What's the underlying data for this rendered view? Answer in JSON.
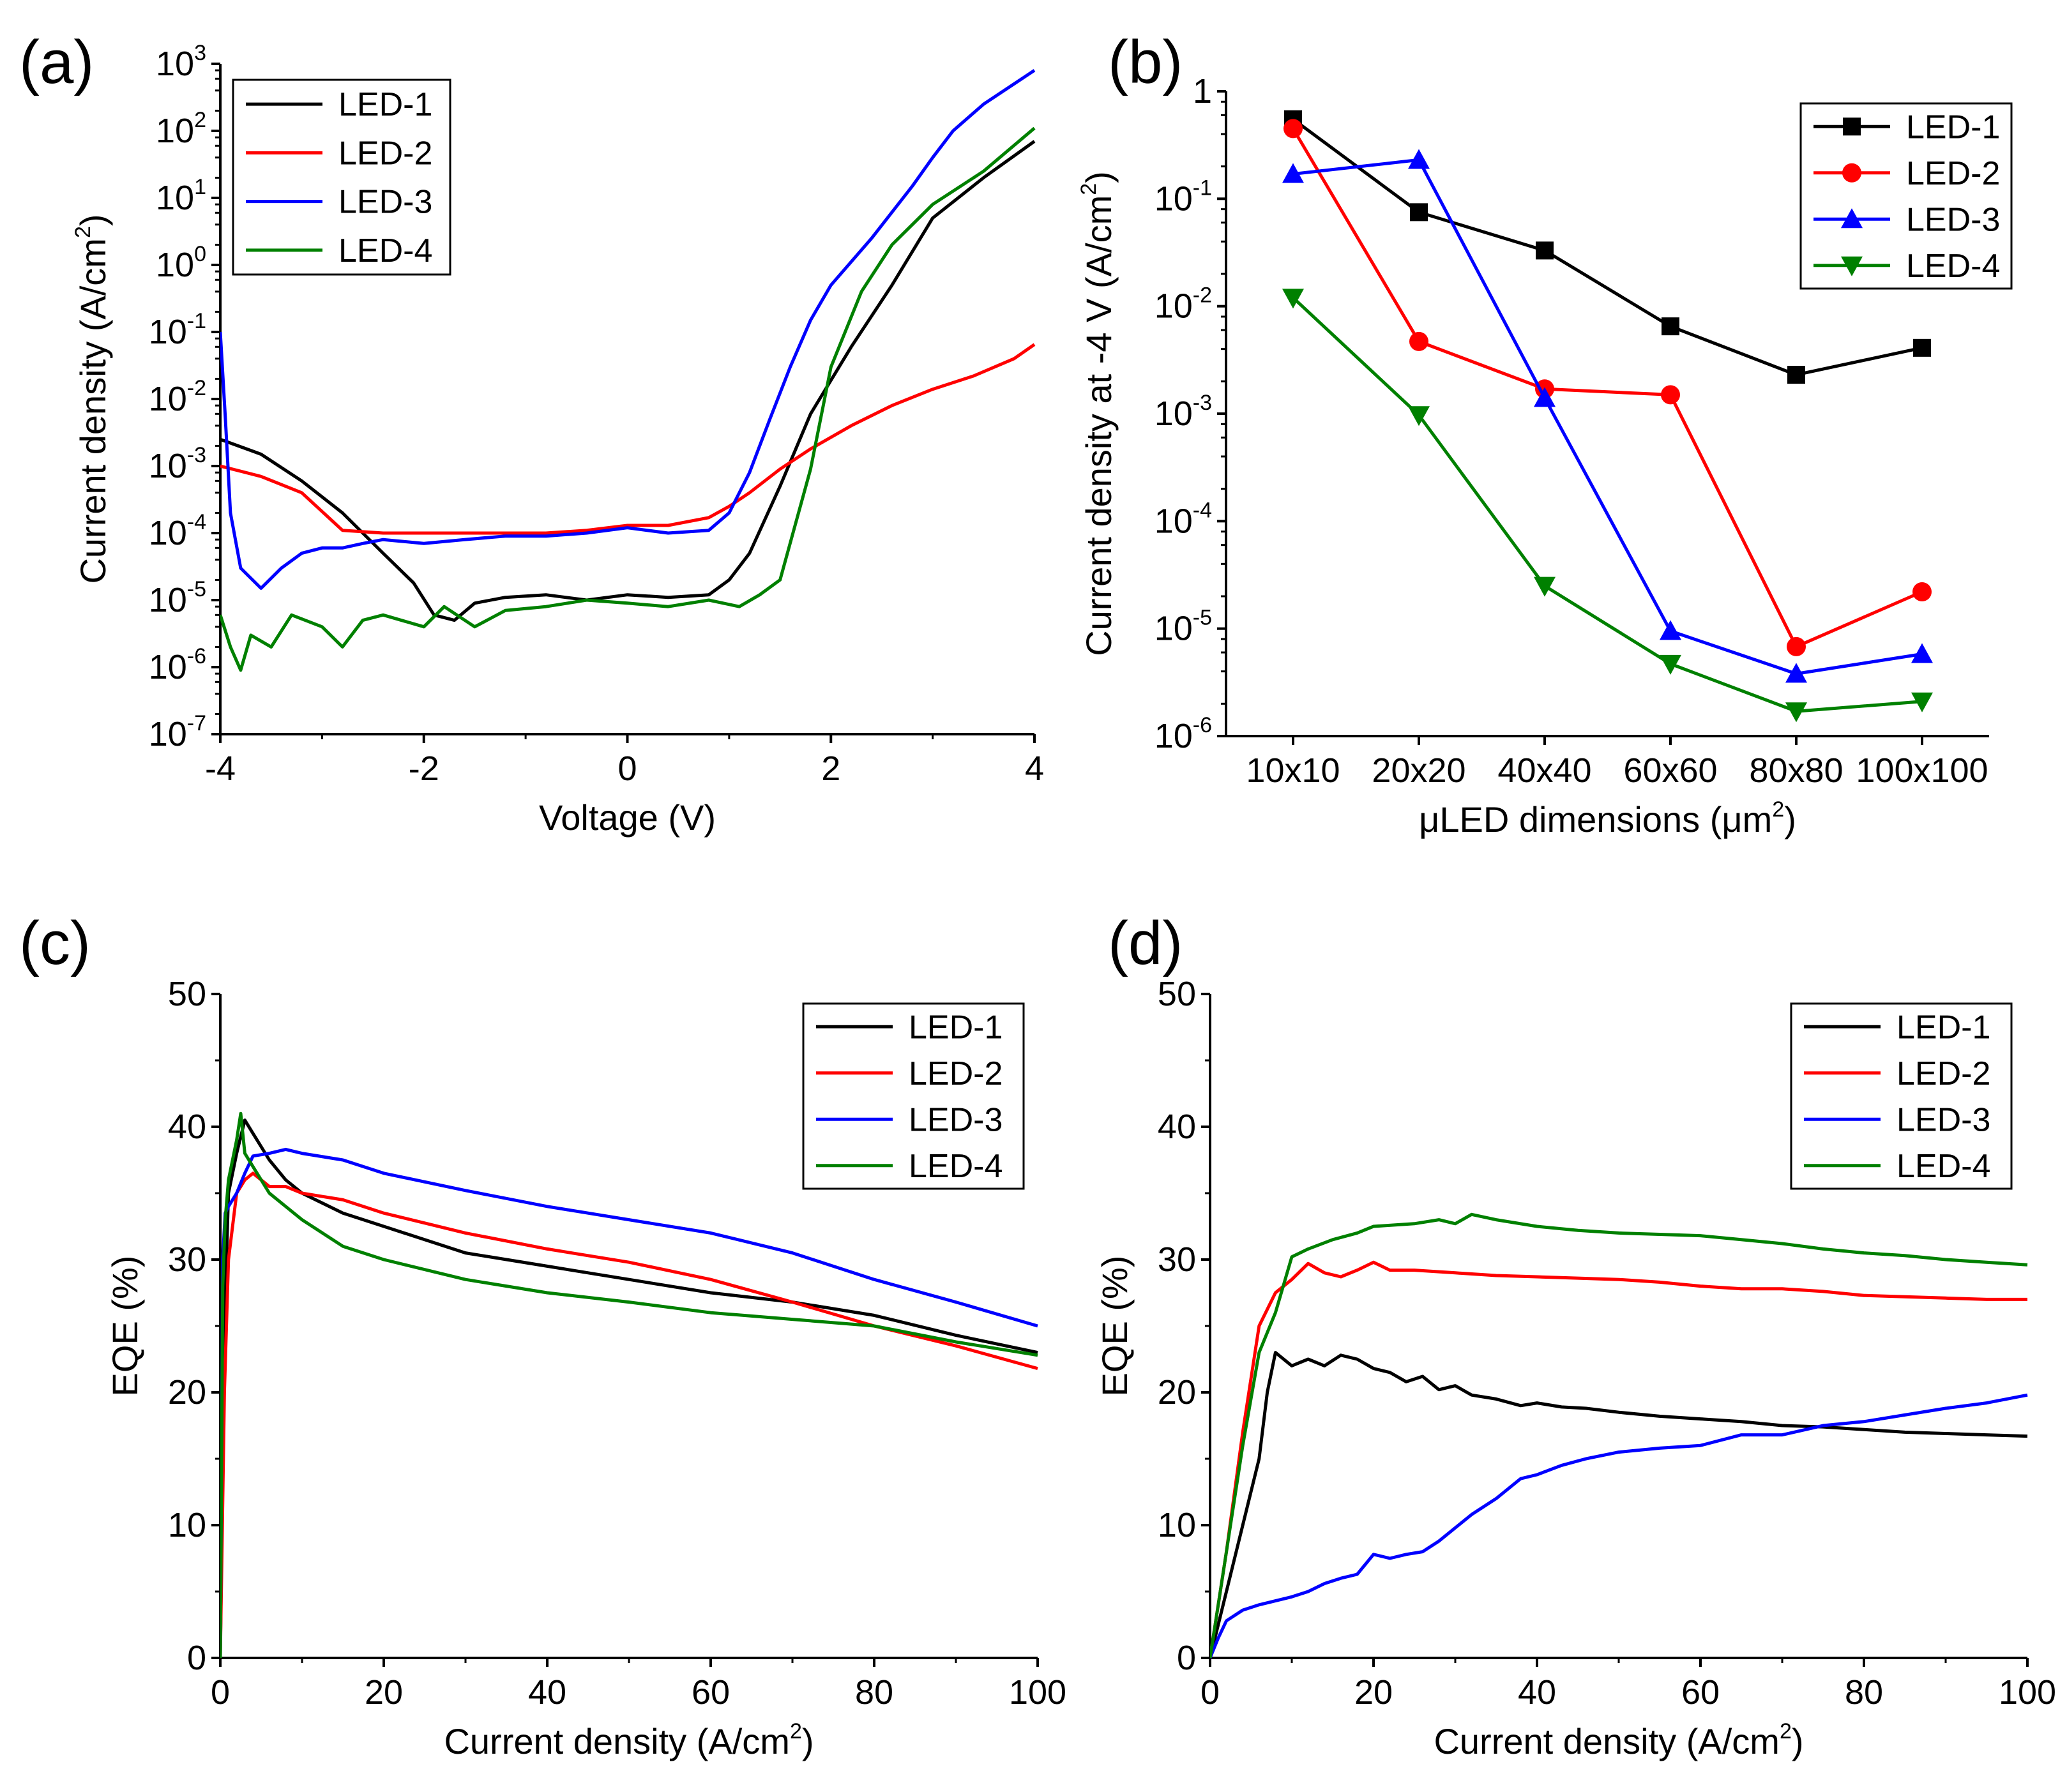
{
  "chart_data": [
    {
      "panel": "(a)",
      "type": "line",
      "xlabel": "Voltage (V)",
      "ylabel": "Current density (A/cm",
      "ylabel_sup": "2",
      "ylabel_end": ")",
      "yscale": "log",
      "xlim": [
        -4,
        4
      ],
      "ylim_exp": [
        -7,
        3
      ],
      "xticks": [
        -4,
        -2,
        0,
        2,
        4
      ],
      "yticks": [
        {
          "exp": -7,
          "text": "10",
          "sup": "-7"
        },
        {
          "exp": -6,
          "text": "10",
          "sup": "-6"
        },
        {
          "exp": -5,
          "text": "10",
          "sup": "-5"
        },
        {
          "exp": -4,
          "text": "10",
          "sup": "-4"
        },
        {
          "exp": -3,
          "text": "10",
          "sup": "-3"
        },
        {
          "exp": -2,
          "text": "10",
          "sup": "-2"
        },
        {
          "exp": -1,
          "text": "10",
          "sup": "-1"
        },
        {
          "exp": 0,
          "text": "10",
          "sup": "0"
        },
        {
          "exp": 1,
          "text": "10",
          "sup": "1"
        },
        {
          "exp": 2,
          "text": "10",
          "sup": "2"
        },
        {
          "exp": 3,
          "text": "10",
          "sup": "3"
        }
      ],
      "legend": "top-left",
      "series": [
        {
          "name": "LED-1",
          "color": "#000000",
          "x": [
            -4,
            -3.6,
            -3.2,
            -2.8,
            -2.4,
            -2.1,
            -1.9,
            -1.7,
            -1.5,
            -1.2,
            -0.8,
            -0.4,
            0,
            0.4,
            0.8,
            1.0,
            1.2,
            1.5,
            1.8,
            2.2,
            2.6,
            3.0,
            3.5,
            4.0
          ],
          "y": [
            0.0025,
            0.0015,
            0.0006,
            0.0002,
            5e-05,
            1.8e-05,
            6e-06,
            5e-06,
            9e-06,
            1.1e-05,
            1.2e-05,
            1e-05,
            1.2e-05,
            1.1e-05,
            1.2e-05,
            2e-05,
            5e-05,
            0.0005,
            0.006,
            0.06,
            0.5,
            5,
            20,
            70
          ]
        },
        {
          "name": "LED-2",
          "color": "#ff0000",
          "x": [
            -4,
            -3.6,
            -3.2,
            -2.8,
            -2.4,
            -2.0,
            -1.6,
            -1.2,
            -0.8,
            -0.4,
            0,
            0.4,
            0.8,
            1.0,
            1.2,
            1.5,
            1.8,
            2.2,
            2.6,
            3.0,
            3.4,
            3.8,
            4.0
          ],
          "y": [
            0.001,
            0.0007,
            0.0004,
            0.00011,
            0.0001,
            0.0001,
            0.0001,
            0.0001,
            0.0001,
            0.00011,
            0.00013,
            0.00013,
            0.00017,
            0.00025,
            0.0004,
            0.0009,
            0.0018,
            0.004,
            0.008,
            0.014,
            0.022,
            0.04,
            0.065
          ]
        },
        {
          "name": "LED-3",
          "color": "#0000ff",
          "x": [
            -4,
            -3.95,
            -3.9,
            -3.8,
            -3.6,
            -3.4,
            -3.2,
            -3.0,
            -2.8,
            -2.6,
            -2.4,
            -2.0,
            -1.6,
            -1.2,
            -0.8,
            -0.4,
            0,
            0.4,
            0.8,
            1.0,
            1.2,
            1.4,
            1.6,
            1.8,
            2.0,
            2.4,
            2.8,
            3.0,
            3.2,
            3.5,
            4.0
          ],
          "y": [
            0.1,
            0.005,
            0.0002,
            3e-05,
            1.5e-05,
            3e-05,
            5e-05,
            6e-05,
            6e-05,
            7e-05,
            8e-05,
            7e-05,
            8e-05,
            9e-05,
            9e-05,
            0.0001,
            0.00012,
            0.0001,
            0.00011,
            0.0002,
            0.0008,
            0.005,
            0.03,
            0.15,
            0.5,
            2.5,
            15,
            40,
            100,
            250,
            800
          ]
        },
        {
          "name": "LED-4",
          "color": "#008000",
          "x": [
            -4,
            -3.9,
            -3.8,
            -3.7,
            -3.5,
            -3.3,
            -3.0,
            -2.8,
            -2.6,
            -2.4,
            -2.0,
            -1.8,
            -1.5,
            -1.2,
            -0.8,
            -0.4,
            0,
            0.4,
            0.8,
            1.1,
            1.3,
            1.5,
            1.8,
            2.0,
            2.3,
            2.6,
            3.0,
            3.5,
            4.0
          ],
          "y": [
            6e-06,
            2e-06,
            9e-07,
            3e-06,
            2e-06,
            6e-06,
            4e-06,
            2e-06,
            5e-06,
            6e-06,
            4e-06,
            8e-06,
            4e-06,
            7e-06,
            8e-06,
            1e-05,
            9e-06,
            8e-06,
            1e-05,
            8e-06,
            1.2e-05,
            2e-05,
            0.0009,
            0.03,
            0.4,
            2,
            8,
            25,
            110
          ]
        }
      ]
    },
    {
      "panel": "(b)",
      "type": "line",
      "xlabel": "μLED dimensions (μm",
      "xlabel_sup": "2",
      "xlabel_end": ")",
      "ylabel": "Current density at -4 V (A/cm",
      "ylabel_sup": "2",
      "ylabel_end": ")",
      "yscale": "log",
      "categories": [
        "10x10",
        "20x20",
        "40x40",
        "60x60",
        "80x80",
        "100x100"
      ],
      "ylim_exp": [
        -6,
        0
      ],
      "yticks": [
        {
          "exp": 0,
          "text": "1",
          "sup": ""
        },
        {
          "exp": -1,
          "text": "10",
          "sup": "-1"
        },
        {
          "exp": -2,
          "text": "10",
          "sup": "-2"
        },
        {
          "exp": -3,
          "text": "10",
          "sup": "-3"
        },
        {
          "exp": -4,
          "text": "10",
          "sup": "-4"
        },
        {
          "exp": -5,
          "text": "10",
          "sup": "-5"
        },
        {
          "exp": -6,
          "text": "10",
          "sup": "-6"
        }
      ],
      "legend": "top-right",
      "series": [
        {
          "name": "LED-1",
          "color": "#000000",
          "marker": "square",
          "values": [
            0.55,
            0.075,
            0.033,
            0.0065,
            0.0023,
            0.0041
          ]
        },
        {
          "name": "LED-2",
          "color": "#ff0000",
          "marker": "circle",
          "values": [
            0.45,
            0.0047,
            0.0017,
            0.0015,
            6.8e-06,
            2.2e-05
          ]
        },
        {
          "name": "LED-3",
          "color": "#0000ff",
          "marker": "triangle-up",
          "values": [
            0.17,
            0.23,
            0.0014,
            9.5e-06,
            3.8e-06,
            5.8e-06
          ]
        },
        {
          "name": "LED-4",
          "color": "#008000",
          "marker": "triangle-down",
          "values": [
            0.012,
            0.00097,
            2.5e-05,
            4.7e-06,
            1.7e-06,
            2.1e-06
          ]
        }
      ]
    },
    {
      "panel": "(c)",
      "type": "line",
      "xlabel": "Current density (A/cm",
      "xlabel_sup": "2",
      "xlabel_end": ")",
      "ylabel": "EQE (%)",
      "xlim": [
        0,
        100
      ],
      "ylim": [
        0,
        50
      ],
      "xticks": [
        0,
        20,
        40,
        60,
        80,
        100
      ],
      "yticks": [
        0,
        10,
        20,
        30,
        40,
        50
      ],
      "legend": "top-right",
      "series": [
        {
          "name": "LED-1",
          "color": "#000000",
          "x": [
            0,
            0.5,
            1,
            2,
            3,
            4,
            6,
            8,
            10,
            15,
            20,
            30,
            40,
            50,
            60,
            70,
            80,
            90,
            100
          ],
          "y": [
            0,
            25,
            35,
            38,
            40.5,
            39.5,
            37.5,
            36,
            35,
            33.5,
            32.5,
            30.5,
            29.5,
            28.5,
            27.5,
            26.8,
            25.8,
            24.3,
            23
          ]
        },
        {
          "name": "LED-2",
          "color": "#ff0000",
          "x": [
            0,
            0.5,
            1,
            2,
            3,
            4,
            5,
            6,
            8,
            10,
            15,
            20,
            30,
            40,
            50,
            60,
            70,
            80,
            90,
            100
          ],
          "y": [
            0,
            20,
            30,
            35,
            36,
            36.5,
            36,
            35.5,
            35.5,
            35,
            34.5,
            33.5,
            32,
            30.8,
            29.8,
            28.5,
            26.8,
            25,
            23.5,
            21.8
          ]
        },
        {
          "name": "LED-3",
          "color": "#0000ff",
          "x": [
            0,
            0.3,
            0.6,
            1,
            2,
            3,
            4,
            6,
            8,
            10,
            15,
            20,
            30,
            40,
            50,
            60,
            70,
            80,
            90,
            100
          ],
          "y": [
            0,
            30,
            33.5,
            34,
            35,
            36.5,
            37.8,
            38,
            38.3,
            38,
            37.5,
            36.5,
            35.2,
            34,
            33,
            32,
            30.5,
            28.5,
            26.8,
            25
          ]
        },
        {
          "name": "LED-4",
          "color": "#008000",
          "x": [
            0,
            0.3,
            0.6,
            1,
            2,
            2.5,
            3,
            4,
            6,
            8,
            10,
            15,
            20,
            30,
            40,
            50,
            60,
            70,
            80,
            90,
            100
          ],
          "y": [
            0,
            28,
            33,
            36,
            39,
            41,
            38,
            37,
            35,
            34,
            33,
            31,
            30,
            28.5,
            27.5,
            26.8,
            26,
            25.5,
            25,
            23.8,
            22.8
          ]
        }
      ]
    },
    {
      "panel": "(d)",
      "type": "line",
      "xlabel": "Current density (A/cm",
      "xlabel_sup": "2",
      "xlabel_end": ")",
      "ylabel": "EQE (%)",
      "xlim": [
        0,
        100
      ],
      "ylim": [
        0,
        50
      ],
      "xticks": [
        0,
        20,
        40,
        60,
        80,
        100
      ],
      "yticks": [
        0,
        10,
        20,
        30,
        40,
        50
      ],
      "legend": "top-right",
      "series": [
        {
          "name": "LED-1",
          "color": "#000000",
          "x": [
            0,
            2,
            4,
            6,
            7,
            8,
            10,
            12,
            14,
            16,
            18,
            20,
            22,
            24,
            26,
            28,
            30,
            32,
            35,
            38,
            40,
            43,
            46,
            50,
            55,
            60,
            65,
            70,
            75,
            80,
            85,
            90,
            95,
            100
          ],
          "y": [
            0,
            5,
            10,
            15,
            20,
            23,
            22,
            22.5,
            22,
            22.8,
            22.5,
            21.8,
            21.5,
            20.8,
            21.2,
            20.2,
            20.5,
            19.8,
            19.5,
            19,
            19.2,
            18.9,
            18.8,
            18.5,
            18.2,
            18,
            17.8,
            17.5,
            17.4,
            17.2,
            17,
            16.9,
            16.8,
            16.7
          ]
        },
        {
          "name": "LED-2",
          "color": "#ff0000",
          "x": [
            0,
            2,
            4,
            6,
            8,
            10,
            12,
            14,
            16,
            18,
            20,
            22,
            25,
            30,
            35,
            40,
            45,
            50,
            55,
            60,
            65,
            70,
            75,
            80,
            85,
            90,
            95,
            100
          ],
          "y": [
            0,
            8,
            17,
            25,
            27.5,
            28.5,
            29.7,
            29,
            28.7,
            29.2,
            29.8,
            29.2,
            29.2,
            29,
            28.8,
            28.7,
            28.6,
            28.5,
            28.3,
            28,
            27.8,
            27.8,
            27.6,
            27.3,
            27.2,
            27.1,
            27,
            27
          ]
        },
        {
          "name": "LED-3",
          "color": "#0000ff",
          "x": [
            0,
            1,
            2,
            4,
            6,
            8,
            10,
            12,
            14,
            16,
            18,
            20,
            22,
            24,
            26,
            28,
            30,
            32,
            35,
            38,
            40,
            43,
            46,
            50,
            55,
            60,
            65,
            70,
            75,
            80,
            85,
            90,
            95,
            100
          ],
          "y": [
            0,
            1.5,
            2.8,
            3.6,
            4,
            4.3,
            4.6,
            5,
            5.6,
            6,
            6.3,
            7.8,
            7.5,
            7.8,
            8,
            8.8,
            9.8,
            10.8,
            12,
            13.5,
            13.8,
            14.5,
            15,
            15.5,
            15.8,
            16,
            16.8,
            16.8,
            17.5,
            17.8,
            18.3,
            18.8,
            19.2,
            19.8
          ]
        },
        {
          "name": "LED-4",
          "color": "#008000",
          "x": [
            0,
            2,
            4,
            6,
            8,
            10,
            12,
            15,
            18,
            20,
            25,
            28,
            30,
            32,
            35,
            40,
            45,
            50,
            55,
            60,
            65,
            70,
            75,
            80,
            85,
            90,
            95,
            100
          ],
          "y": [
            0,
            8,
            16,
            23,
            26,
            30.2,
            30.8,
            31.5,
            32,
            32.5,
            32.7,
            33,
            32.7,
            33.4,
            33,
            32.5,
            32.2,
            32,
            31.9,
            31.8,
            31.5,
            31.2,
            30.8,
            30.5,
            30.3,
            30,
            29.8,
            29.6
          ]
        }
      ]
    }
  ]
}
